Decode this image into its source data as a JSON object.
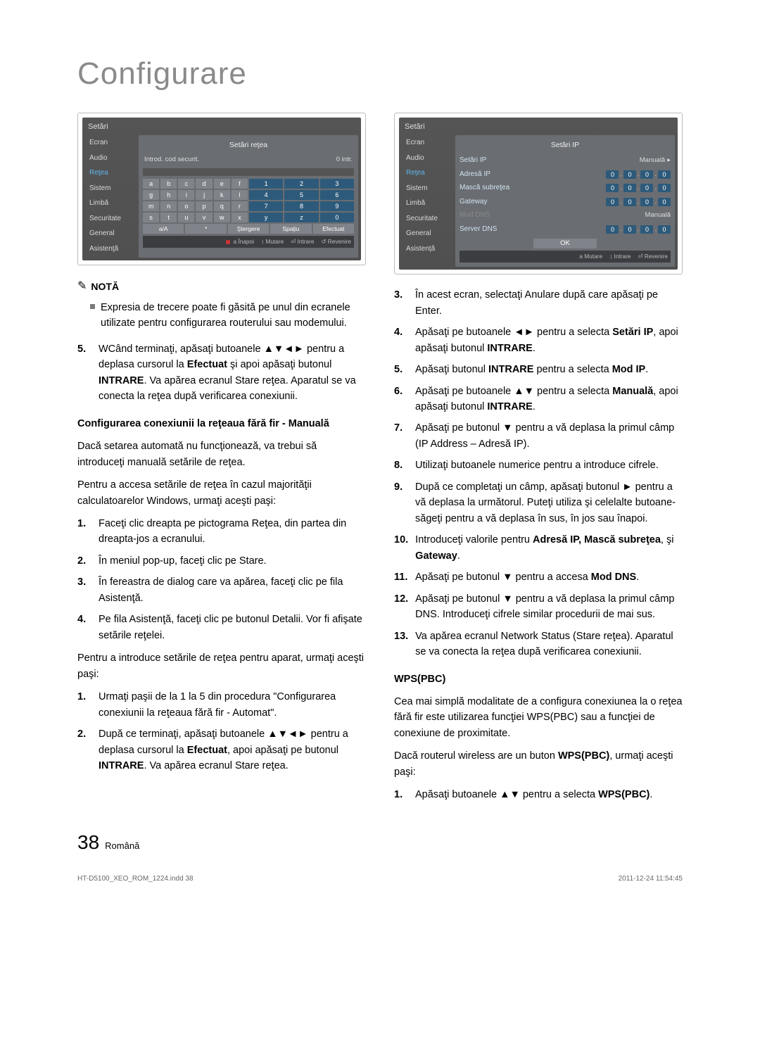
{
  "page": {
    "title": "Configurare",
    "number": "38",
    "lang": "Română",
    "print_left": "HT-D5100_XEO_ROM_1224.indd   38",
    "print_right": "2011-12-24   11:54:45"
  },
  "panel1": {
    "settings_label": "Setări",
    "title": "Setări reţea",
    "sub_left": "Introd. cod securit.",
    "sub_right": "0 intr.",
    "sidebar": [
      "Ecran",
      "Audio",
      "Reţea",
      "Sistem",
      "Limbă",
      "Securitate",
      "General",
      "Asistenţă"
    ],
    "active_index": 2,
    "keys_rows": [
      [
        "a",
        "b",
        "c",
        "d",
        "e",
        "f",
        "1",
        "2",
        "3"
      ],
      [
        "g",
        "h",
        "i",
        "j",
        "k",
        "l",
        "4",
        "5",
        "6"
      ],
      [
        "m",
        "n",
        "o",
        "p",
        "q",
        "r",
        "7",
        "8",
        "9"
      ],
      [
        "s",
        "t",
        "u",
        "v",
        "w",
        "x",
        "y",
        "z",
        "0"
      ]
    ],
    "foot": [
      "a/A",
      "*",
      "Ştergere",
      "Spaţiu",
      "Efectuat"
    ],
    "hints": [
      "Înapoi",
      "Mutare",
      "Intrare",
      "Revenire"
    ]
  },
  "panel2": {
    "settings_label": "Setări",
    "title": "Setări IP",
    "sidebar": [
      "Ecran",
      "Audio",
      "Reţea",
      "Sistem",
      "Limbă",
      "Securitate",
      "General",
      "Asistenţă"
    ],
    "active_index": 2,
    "rows": [
      {
        "label": "Setări IP",
        "mode": "Manuală",
        "arrow": true
      },
      {
        "label": "Adresă IP",
        "octets": [
          "0",
          "0",
          "0",
          "0"
        ]
      },
      {
        "label": "Mască subreţea",
        "octets": [
          "0",
          "0",
          "0",
          "0"
        ]
      },
      {
        "label": "Gateway",
        "octets": [
          "0",
          "0",
          "0",
          "0"
        ]
      },
      {
        "label": "Mod DNS",
        "mode": "Manuală",
        "dim": true
      },
      {
        "label": "Server DNS",
        "octets": [
          "0",
          "0",
          "0",
          "0"
        ]
      }
    ],
    "ok": "OK",
    "hints": [
      "Mutare",
      "Intrare",
      "Revenire"
    ]
  },
  "left": {
    "note_label": "NOTĂ",
    "bullet": "Expresia de trecere poate fi găsită pe unul din ecranele utilizate pentru configurarea routerului sau modemului.",
    "step5_a": "WCând terminaţi, apăsaţi butoanele ",
    "step5_b": " pentru a deplasa cursorul la ",
    "step5_c": " şi apoi apăsaţi butonul ",
    "step5_d": ". Va apărea ecranul Stare reţea. Aparatul se va conecta la reţea după verificarea conexiunii.",
    "efectuat": "Efectuat",
    "intrare": "INTRARE",
    "subhead1": "Configurarea conexiunii la reţeaua fără fir - Manuală",
    "p1": "Dacă setarea automată nu funcţionează, va trebui să introduceţi manuală setările de reţea.",
    "p2": "Pentru a accesa setările de reţea în cazul majorităţii calculatoarelor Windows, urmaţi aceşti paşi:",
    "w1": "Faceţi clic dreapta pe pictograma Reţea, din partea din dreapta-jos a ecranului.",
    "w2": "În meniul pop-up, faceţi clic pe Stare.",
    "w3": "În fereastra de dialog care va apărea, faceţi clic pe fila Asistenţă.",
    "w4": "Pe fila Asistenţă, faceţi clic pe butonul Detalii. Vor fi afişate setările reţelei.",
    "p3": "Pentru a introduce setările de reţea pentru aparat, urmaţi aceşti paşi:",
    "a1": "Urmaţi paşii de la 1 la 5 din procedura \"Configurarea conexiunii la reţeaua fără fir - Automat\".",
    "a2_a": "După ce terminaţi, apăsaţi butoanele ",
    "a2_b": " pentru a deplasa cursorul la ",
    "a2_c": ", apoi apăsaţi pe butonul ",
    "a2_d": ". Va apărea ecranul Stare reţea."
  },
  "right": {
    "s3": "În acest ecran, selectaţi Anulare după care apăsaţi pe Enter.",
    "s4_a": "Apăsaţi pe butoanele ",
    "s4_b": " pentru a selecta ",
    "s4_c": ", apoi apăsaţi butonul ",
    "setariip": "Setări IP",
    "intrare": "INTRARE",
    "s5_a": "Apăsaţi butonul ",
    "s5_b": " pentru a selecta ",
    "modip": "Mod IP",
    "s6_a": "Apăsaţi pe butoanele ",
    "s6_b": " pentru a selecta ",
    "s6_c": ", apoi apăsaţi butonul ",
    "manuala": "Manuală",
    "s7_a": "Apăsaţi pe butonul ",
    "s7_b": " pentru a vă deplasa la primul câmp (IP Address – Adresă IP).",
    "s8": "Utilizaţi butoanele numerice pentru a introduce cifrele.",
    "s9_a": "După ce completaţi un câmp, apăsaţi butonul ",
    "s9_b": " pentru a vă deplasa la următorul. Puteţi utiliza şi celelalte butoane-săgeţi pentru a vă deplasa în sus, în jos sau înapoi.",
    "s10_a": "Introduceţi valorile pentru ",
    "s10_b": ", şi ",
    "adresaip": "Adresă IP, Mască subreţea",
    "gateway": "Gateway",
    "s11_a": "Apăsaţi pe butonul ",
    "s11_b": " pentru a accesa ",
    "moddns": "Mod DNS",
    "s12_a": "Apăsaţi pe butonul ",
    "s12_b": " pentru a vă deplasa la primul câmp DNS. Introduceţi cifrele similar procedurii de mai sus.",
    "s13": "Va apărea ecranul Network Status (Stare reţea). Aparatul se va conecta la reţea după verificarea conexiunii.",
    "wps_head": "WPS(PBC)",
    "wps_p1": "Cea mai simplă modalitate de a configura conexiunea la o reţea fără fir este utilizarea funcţiei WPS(PBC) sau a funcţiei de conexiune de proximitate.",
    "wps_p2_a": "Dacă routerul wireless are un buton ",
    "wps_p2_b": ", urmaţi aceşti paşi:",
    "wps_bold": "WPS(PBC)",
    "wps_s1_a": "Apăsaţi butoanele ",
    "wps_s1_b": " pentru a selecta "
  },
  "symbols": {
    "arrows_4": "▲▼◄►",
    "arrows_lr": "◄►",
    "arrows_ud": "▲▼",
    "arrow_d": "▼",
    "arrow_r": "►",
    "note_sym": "✎"
  }
}
